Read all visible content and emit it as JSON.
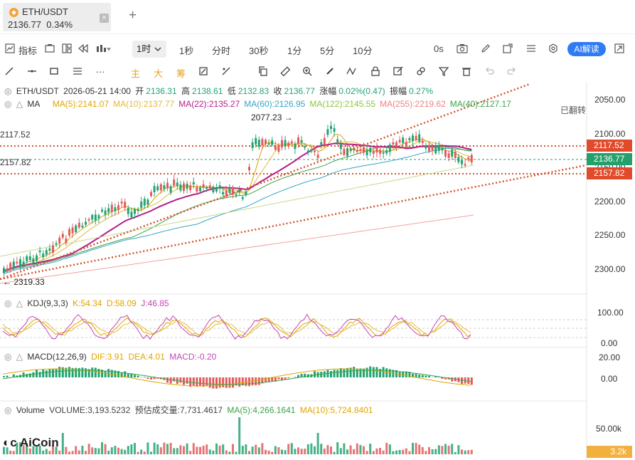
{
  "tab": {
    "coin_icon": "ethereum-coin-icon",
    "symbol": "ETH/USDT",
    "price": "2136.77",
    "change": "0.34%"
  },
  "toolbar": {
    "indicator_label": "指标",
    "selected_period": "1时",
    "periods": [
      "1秒",
      "分时",
      "30秒",
      "1分",
      "5分",
      "10分"
    ],
    "countdown": "0s",
    "ai_label": "AI解读"
  },
  "drawing": {
    "main_label": "主",
    "big_label": "大",
    "chip_label": "筹"
  },
  "main_legend": {
    "symbol": "ETH/USDT",
    "time": "2026-05-21 14:00",
    "open_label": "开",
    "open": "2136.31",
    "high_label": "高",
    "high": "2138.61",
    "low_label": "低",
    "low": "2132.83",
    "close_label": "收",
    "close": "2136.77",
    "change_label": "涨幅",
    "change": "0.02%(0.47)",
    "amp_label": "振幅",
    "amp": "0.27%"
  },
  "ma_legend": {
    "title": "MA",
    "items": [
      {
        "text": "MA(5):2141.07",
        "color": "#e0a400"
      },
      {
        "text": "MA(10):2137.77",
        "color": "#e2b93b"
      },
      {
        "text": "MA(22):2135.27",
        "color": "#b21e8a"
      },
      {
        "text": "MA(60):2126.95",
        "color": "#35a6c4"
      },
      {
        "text": "MA(122):2145.55",
        "color": "#8fc43f"
      },
      {
        "text": "MA(255):2219.62",
        "color": "#f08080"
      },
      {
        "text": "MA(40):2127.17",
        "color": "#3aa34a"
      }
    ]
  },
  "flip_note": "已翻转",
  "annotations": {
    "peak": "2077.23",
    "trough": "2319.33",
    "left_upper": "2117.52",
    "left_lower": "2157.82"
  },
  "price_axis": {
    "ticks": [
      "2050.00",
      "2100.00",
      "2150.00",
      "2200.00",
      "2250.00",
      "2300.00"
    ],
    "badges": [
      {
        "text": "2117.52",
        "color": "#e14b2c"
      },
      {
        "text": "2136.77",
        "color": "#25a06b"
      },
      {
        "text": "2157.82",
        "color": "#e14b2c"
      }
    ]
  },
  "kdj": {
    "title": "KDJ(9,3,3)",
    "k": "K:54.34",
    "d": "D:58.09",
    "j": "J:46.85",
    "axis": [
      "100.00",
      "0.00"
    ]
  },
  "macd": {
    "title": "MACD(12,26,9)",
    "dif": "DIF:3.91",
    "dea": "DEA:4.01",
    "macd": "MACD:-0.20",
    "axis": [
      "20.00",
      "0.00"
    ]
  },
  "volume": {
    "title": "Volume",
    "volume": "VOLUME:3,193.5232",
    "estimate": "预估成交量:7,731.4617",
    "ma5": "MA(5):4,266.1641",
    "ma10": "MA(10):5,724.8401",
    "axis": [
      "50.00k"
    ],
    "badge": "3.2k"
  },
  "watermark": "AiCoin",
  "colors": {
    "up": "#e25c5c",
    "down": "#24a372",
    "ma22": "#b21e8a",
    "trend": "#d4532b"
  }
}
